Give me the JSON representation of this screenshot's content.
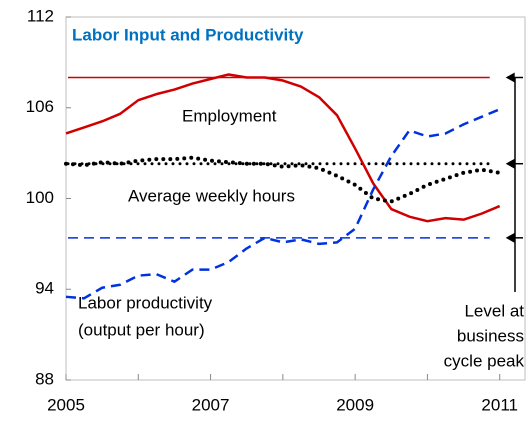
{
  "chart_data": {
    "type": "line",
    "title": "Labor Input and Productivity",
    "title_color": "#0070c0",
    "x": [
      2005,
      2005.25,
      2005.5,
      2005.75,
      2006,
      2006.25,
      2006.5,
      2006.75,
      2007,
      2007.25,
      2007.5,
      2007.75,
      2008,
      2008.25,
      2008.5,
      2008.75,
      2009,
      2009.25,
      2009.5,
      2009.75,
      2010,
      2010.25,
      2010.5,
      2010.75,
      2011
    ],
    "series": [
      {
        "name": "Employment",
        "color": "#d00000",
        "style": "solid",
        "values": [
          104.3,
          104.7,
          105.1,
          105.6,
          106.5,
          106.9,
          107.2,
          107.6,
          107.9,
          108.2,
          108.0,
          108.0,
          107.8,
          107.4,
          106.7,
          105.5,
          103.3,
          101.0,
          99.3,
          98.8,
          98.5,
          98.7,
          98.6,
          99.0,
          99.5
        ]
      },
      {
        "name": "Average weekly hours",
        "color": "#000000",
        "style": "dotted",
        "values": [
          102.3,
          102.2,
          102.4,
          102.3,
          102.5,
          102.6,
          102.6,
          102.7,
          102.5,
          102.4,
          102.3,
          102.3,
          102.1,
          102.2,
          102.0,
          101.5,
          100.9,
          100.0,
          99.8,
          100.3,
          100.9,
          101.3,
          101.7,
          101.9,
          101.7
        ]
      },
      {
        "name": "Labor productivity",
        "name_note": "(output per hour)",
        "color": "#0033dd",
        "style": "dashed",
        "values": [
          93.5,
          93.4,
          94.1,
          94.3,
          94.9,
          95.0,
          94.5,
          95.3,
          95.3,
          95.8,
          96.7,
          97.4,
          97.1,
          97.3,
          97.0,
          97.1,
          98.0,
          100.6,
          102.8,
          104.5,
          104.1,
          104.3,
          104.9,
          105.4,
          105.9
        ]
      }
    ],
    "reference_lines": [
      {
        "value": 108.0,
        "color": "#d00000",
        "style": "solid"
      },
      {
        "value": 102.3,
        "color": "#000000",
        "style": "dotted"
      },
      {
        "value": 97.4,
        "color": "#0033dd",
        "style": "dashed"
      }
    ],
    "reference_annotation": [
      "Level at",
      "business",
      "cycle peak"
    ],
    "xlim": [
      2005,
      2011.35
    ],
    "xticks": [
      2005,
      2007,
      2009,
      2011
    ],
    "minor_xticks": [
      2006,
      2008,
      2010
    ],
    "ylim": [
      88,
      112
    ],
    "yticks": [
      88,
      94,
      100,
      106,
      112
    ]
  }
}
